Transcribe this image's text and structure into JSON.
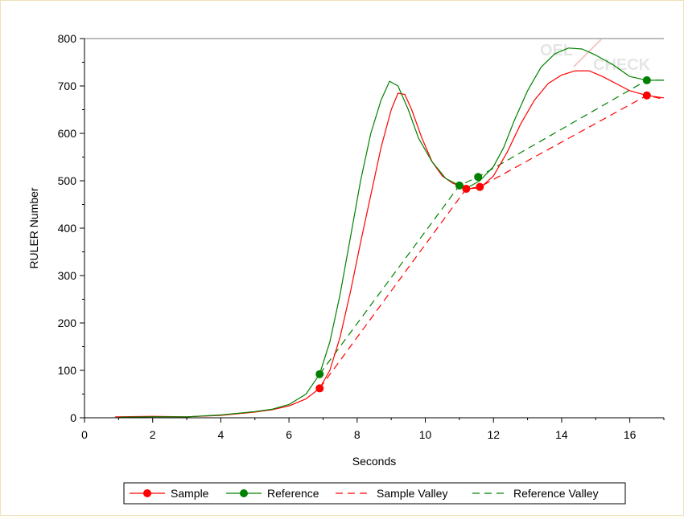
{
  "chart_data": {
    "type": "line",
    "xlabel": "Seconds",
    "ylabel": "RULER Number",
    "xlim": [
      0,
      17
    ],
    "ylim": [
      0,
      800
    ],
    "x_ticks": [
      0,
      2,
      4,
      6,
      8,
      10,
      12,
      14,
      16
    ],
    "y_ticks": [
      0,
      100,
      200,
      300,
      400,
      500,
      600,
      700,
      800
    ],
    "x_tick_labels": [
      "0",
      "2",
      "4",
      "6",
      "8",
      "10",
      "12",
      "14",
      "16"
    ],
    "y_tick_labels": [
      "0",
      "100",
      "200",
      "300",
      "400",
      "500",
      "600",
      "700",
      "800"
    ],
    "grid": false,
    "legend_position": "bottom",
    "watermark_text": [
      "OEL",
      "CHECK"
    ],
    "series": [
      {
        "name": "Sample",
        "color": "#ff0000",
        "style": "solid",
        "points": [
          [
            0.9,
            2
          ],
          [
            2,
            3
          ],
          [
            3,
            2
          ],
          [
            4,
            5
          ],
          [
            5,
            12
          ],
          [
            5.5,
            17
          ],
          [
            6,
            25
          ],
          [
            6.5,
            40
          ],
          [
            6.9,
            62
          ],
          [
            7.2,
            100
          ],
          [
            7.5,
            170
          ],
          [
            7.8,
            265
          ],
          [
            8.1,
            370
          ],
          [
            8.4,
            470
          ],
          [
            8.7,
            570
          ],
          [
            9.0,
            650
          ],
          [
            9.2,
            685
          ],
          [
            9.4,
            682
          ],
          [
            9.6,
            650
          ],
          [
            9.9,
            590
          ],
          [
            10.2,
            540
          ],
          [
            10.5,
            510
          ],
          [
            10.8,
            495
          ],
          [
            11.2,
            483
          ],
          [
            11.6,
            485
          ],
          [
            12.0,
            510
          ],
          [
            12.4,
            560
          ],
          [
            12.8,
            620
          ],
          [
            13.2,
            670
          ],
          [
            13.6,
            705
          ],
          [
            14.0,
            723
          ],
          [
            14.4,
            732
          ],
          [
            14.8,
            732
          ],
          [
            15.2,
            720
          ],
          [
            15.6,
            705
          ],
          [
            16.0,
            690
          ],
          [
            16.5,
            680
          ],
          [
            17.0,
            675
          ]
        ]
      },
      {
        "name": "Reference",
        "color": "#008000",
        "style": "solid",
        "points": [
          [
            1.0,
            1
          ],
          [
            2,
            2
          ],
          [
            3,
            2
          ],
          [
            4,
            6
          ],
          [
            5,
            13
          ],
          [
            5.5,
            18
          ],
          [
            6,
            28
          ],
          [
            6.5,
            50
          ],
          [
            6.9,
            92
          ],
          [
            7.2,
            160
          ],
          [
            7.5,
            260
          ],
          [
            7.8,
            380
          ],
          [
            8.1,
            500
          ],
          [
            8.4,
            600
          ],
          [
            8.7,
            670
          ],
          [
            8.95,
            710
          ],
          [
            9.2,
            700
          ],
          [
            9.5,
            650
          ],
          [
            9.8,
            590
          ],
          [
            10.2,
            540
          ],
          [
            10.6,
            505
          ],
          [
            11.0,
            490
          ],
          [
            11.3,
            488
          ],
          [
            11.6,
            500
          ],
          [
            12.0,
            530
          ],
          [
            12.3,
            570
          ],
          [
            12.6,
            625
          ],
          [
            13.0,
            690
          ],
          [
            13.4,
            740
          ],
          [
            13.8,
            768
          ],
          [
            14.2,
            780
          ],
          [
            14.6,
            778
          ],
          [
            15.0,
            765
          ],
          [
            15.5,
            745
          ],
          [
            16.0,
            720
          ],
          [
            16.5,
            712
          ],
          [
            17.0,
            712
          ]
        ]
      },
      {
        "name": "Sample Valley",
        "color": "#ff0000",
        "style": "dashed",
        "points": [
          [
            6.9,
            62
          ],
          [
            11.2,
            483
          ],
          [
            11.6,
            487
          ],
          [
            16.5,
            680
          ],
          [
            17.0,
            672
          ]
        ]
      },
      {
        "name": "Reference Valley",
        "color": "#008000",
        "style": "dashed",
        "points": [
          [
            6.9,
            92
          ],
          [
            11.0,
            490
          ],
          [
            11.55,
            508
          ],
          [
            16.5,
            712
          ],
          [
            17.0,
            712
          ]
        ]
      }
    ],
    "markers": {
      "Sample": [
        [
          6.9,
          62
        ],
        [
          11.2,
          483
        ],
        [
          11.6,
          487
        ],
        [
          16.5,
          680
        ]
      ],
      "Reference": [
        [
          6.9,
          92
        ],
        [
          11.0,
          490
        ],
        [
          11.55,
          508
        ],
        [
          16.5,
          712
        ]
      ]
    }
  }
}
